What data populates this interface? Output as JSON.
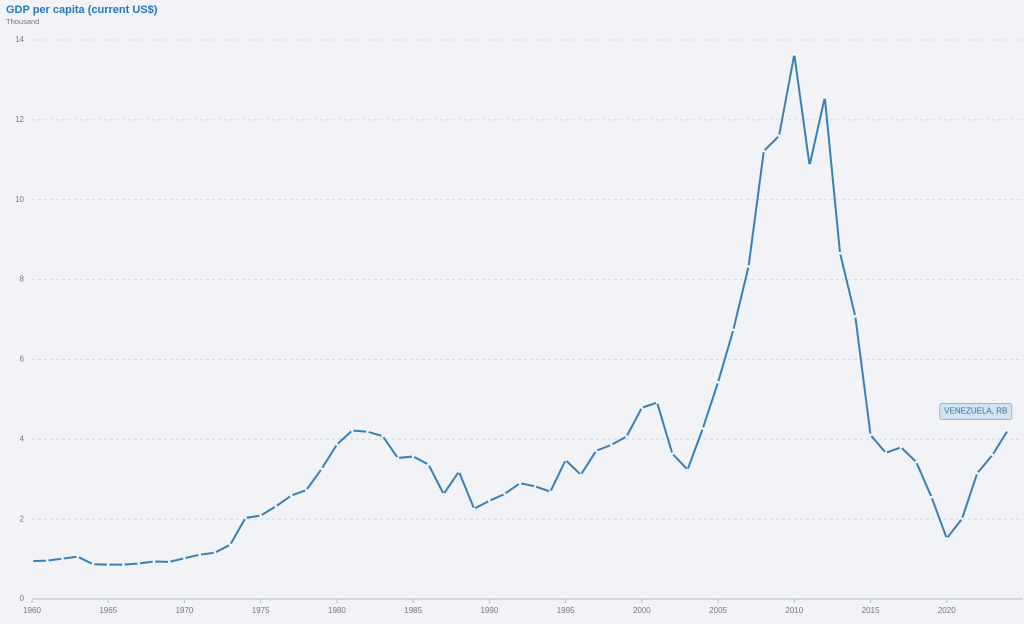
{
  "chart_data": {
    "type": "line",
    "title": "GDP per capita (current US$)",
    "subtitle": "Thousand",
    "x": [
      1960,
      1961,
      1962,
      1963,
      1964,
      1965,
      1966,
      1967,
      1968,
      1969,
      1970,
      1971,
      1972,
      1973,
      1974,
      1975,
      1976,
      1977,
      1978,
      1979,
      1980,
      1981,
      1982,
      1983,
      1984,
      1985,
      1986,
      1987,
      1988,
      1989,
      1990,
      1991,
      1992,
      1993,
      1994,
      1995,
      1996,
      1997,
      1998,
      1999,
      2000,
      2001,
      2002,
      2003,
      2004,
      2005,
      2006,
      2007,
      2008,
      2009,
      2010,
      2011,
      2012,
      2013,
      2014,
      2015,
      2016,
      2017,
      2018,
      2019,
      2020,
      2021,
      2022,
      2023,
      2024
    ],
    "series": [
      {
        "name": "VENEZUELA, RB",
        "color": "#3a80b5",
        "values": [
          0.95,
          0.96,
          1.01,
          1.06,
          0.87,
          0.86,
          0.86,
          0.89,
          0.94,
          0.93,
          1.02,
          1.11,
          1.16,
          1.36,
          2.03,
          2.09,
          2.32,
          2.59,
          2.73,
          3.26,
          3.87,
          4.22,
          4.19,
          4.08,
          3.53,
          3.57,
          3.37,
          2.63,
          3.19,
          2.26,
          2.46,
          2.63,
          2.9,
          2.82,
          2.69,
          3.48,
          3.11,
          3.71,
          3.86,
          4.07,
          4.79,
          4.92,
          3.64,
          3.24,
          4.27,
          5.43,
          6.74,
          8.33,
          11.22,
          11.6,
          13.64,
          10.86,
          12.56,
          8.66,
          7.08,
          4.11,
          3.66,
          3.8,
          3.43,
          2.55,
          1.52,
          2.01,
          3.15,
          3.61,
          4.22
        ]
      }
    ],
    "xlim": [
      1960,
      2025
    ],
    "xticks": [
      1960,
      1965,
      1970,
      1975,
      1980,
      1985,
      1990,
      1995,
      2000,
      2005,
      2010,
      2015,
      2020
    ],
    "ylim": [
      0,
      14
    ],
    "yticks": [
      0,
      2,
      4,
      6,
      8,
      10,
      12,
      14
    ],
    "grid": true
  }
}
